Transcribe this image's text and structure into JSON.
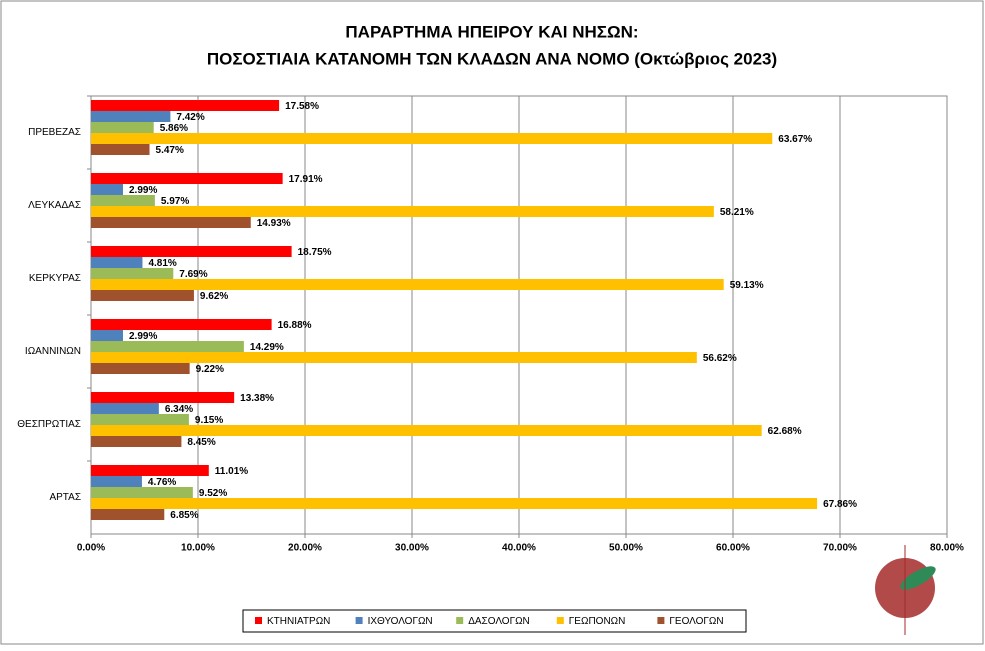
{
  "chart_data": {
    "type": "hbar",
    "title": "ΠΑΡΑΡΤΗΜΑ ΗΠΕΙΡΟΥ ΚΑΙ ΝΗΣΩΝ:",
    "subtitle": "ΠΟΣΟΣΤΙΑΙΑ ΚΑΤΑΝΟΜΗ ΤΩΝ ΚΛΑΔΩΝ ΑΝΑ ΝΟΜΟ (Οκτώβριος 2023)",
    "categories": [
      "ΠΡΕΒΕΖΑΣ",
      "ΛΕΥΚΑΔΑΣ",
      "ΚΕΡΚΥΡΑΣ",
      "ΙΩΑΝΝΙΝΩΝ",
      "ΘΕΣΠΡΩΤΙΑΣ",
      "ΑΡΤΑΣ"
    ],
    "series": [
      {
        "name": "ΚΤΗΝΙΑΤΡΩΝ",
        "color": "#ff0000",
        "values": [
          17.58,
          17.91,
          18.75,
          16.88,
          13.38,
          11.01
        ],
        "value_labels": [
          "17.58%",
          "17.91%",
          "18.75%",
          "16.88%",
          "13.38%",
          "11.01%"
        ]
      },
      {
        "name": "ΙΧΘΥΟΛΟΓΩΝ",
        "color": "#4f81bd",
        "values": [
          7.42,
          2.99,
          4.81,
          2.99,
          6.34,
          4.76
        ],
        "value_labels": [
          "7.42%",
          "2.99%",
          "4.81%",
          "2.99%",
          "6.34%",
          "4.76%"
        ]
      },
      {
        "name": "ΔΑΣΟΛΟΓΩΝ",
        "color": "#9bbb59",
        "values": [
          5.86,
          5.97,
          7.69,
          14.29,
          9.15,
          9.52
        ],
        "value_labels": [
          "5.86%",
          "5.97%",
          "7.69%",
          "14.29%",
          "9.15%",
          "9.52%"
        ]
      },
      {
        "name": "ΓΕΩΠΟΝΩΝ",
        "color": "#ffc000",
        "values": [
          63.67,
          58.21,
          59.13,
          56.62,
          62.68,
          67.86
        ],
        "value_labels": [
          "63.67%",
          "58.21%",
          "59.13%",
          "56.62%",
          "62.68%",
          "67.86%"
        ]
      },
      {
        "name": "ΓΕΟΛΟΓΩΝ",
        "color": "#a0522d",
        "values": [
          5.47,
          14.93,
          9.62,
          9.22,
          8.45,
          6.85
        ],
        "value_labels": [
          "5.47%",
          "14.93%",
          "9.62%",
          "9.22%",
          "8.45%",
          "6.85%"
        ]
      }
    ],
    "xlim": [
      0,
      80
    ],
    "xticks": [
      {
        "value": 0,
        "label": "0.00%"
      },
      {
        "value": 10,
        "label": "10.00%"
      },
      {
        "value": 20,
        "label": "20.00%"
      },
      {
        "value": 30,
        "label": "30.00%"
      },
      {
        "value": 40,
        "label": "40.00%"
      },
      {
        "value": 50,
        "label": "50.00%"
      },
      {
        "value": 60,
        "label": "60.00%"
      },
      {
        "value": 70,
        "label": "70.00%"
      },
      {
        "value": 80,
        "label": "80.00%"
      }
    ],
    "grid": true,
    "legend": "bottom"
  }
}
